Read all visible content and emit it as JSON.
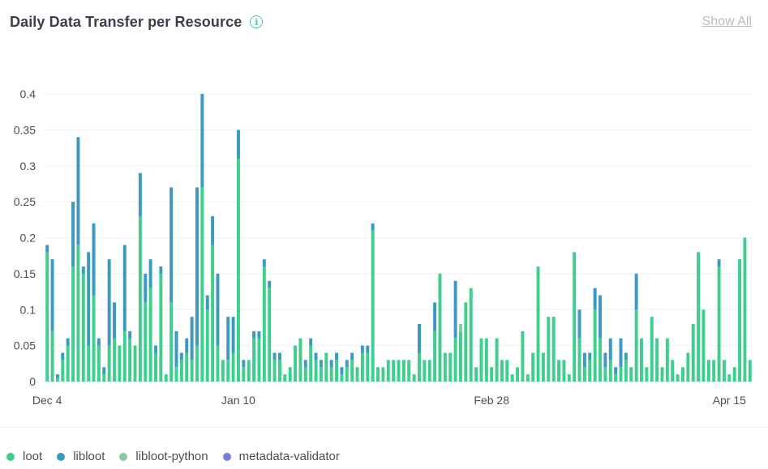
{
  "header": {
    "title": "Daily Data Transfer per Resource",
    "show_all_label": "Show All",
    "info_symbol": "i"
  },
  "colors": {
    "loot": "#3ecf8e",
    "libloot": "#3b99c2",
    "libloot-python": "#87c9a5",
    "metadata-validator": "#7a7fd1"
  },
  "legend": [
    {
      "name": "loot",
      "color": "#3ecf8e"
    },
    {
      "name": "libloot",
      "color": "#3b99c2"
    },
    {
      "name": "libloot-python",
      "color": "#87c9a5"
    },
    {
      "name": "metadata-validator",
      "color": "#7a7fd1"
    }
  ],
  "chart_data": {
    "type": "bar",
    "stacked": true,
    "grid": true,
    "ylim": [
      0,
      0.4
    ],
    "yticks": [
      "0",
      "0.05",
      "0.1",
      "0.15",
      "0.2",
      "0.25",
      "0.3",
      "0.35",
      "0.4"
    ],
    "xtick_labels": [
      {
        "label": "Dec 4",
        "index": 0
      },
      {
        "label": "Jan 10",
        "index": 37
      },
      {
        "label": "Feb 28",
        "index": 86
      },
      {
        "label": "Apr 15",
        "index": 132
      }
    ],
    "series": [
      {
        "name": "loot",
        "values": [
          0.18,
          0.07,
          0.005,
          0.03,
          0.05,
          0.16,
          0.19,
          0.15,
          0.05,
          0.12,
          0.05,
          0.01,
          0.05,
          0.06,
          0.05,
          0.07,
          0.06,
          0.05,
          0.23,
          0.11,
          0.13,
          0.04,
          0.15,
          0.01,
          0.11,
          0.02,
          0.03,
          0.04,
          0.03,
          0.05,
          0.27,
          0.1,
          0.19,
          0.05,
          0.03,
          0.03,
          0.04,
          0.31,
          0.02,
          0.03,
          0.06,
          0.06,
          0.16,
          0.13,
          0.03,
          0.03,
          0.01,
          0.02,
          0.05,
          0.06,
          0.02,
          0.05,
          0.03,
          0.02,
          0.04,
          0.02,
          0.03,
          0.01,
          0.02,
          0.03,
          0.02,
          0.04,
          0.04,
          0.21,
          0.02,
          0.02,
          0.03,
          0.03,
          0.03,
          0.03,
          0.03,
          0.01,
          0.04,
          0.03,
          0.03,
          0.07,
          0.15,
          0.04,
          0.04,
          0.06,
          0.07,
          0.11,
          0.13,
          0.02,
          0.06,
          0.06,
          0.02,
          0.06,
          0.03,
          0.03,
          0.01,
          0.02,
          0.07,
          0.01,
          0.04,
          0.16,
          0.04,
          0.09,
          0.09,
          0.03,
          0.03,
          0.01,
          0.18,
          0.06,
          0.02,
          0.03,
          0.1,
          0.06,
          0.02,
          0.03,
          0.01,
          0.02,
          0.03,
          0.02,
          0.1,
          0.06,
          0.02,
          0.09,
          0.06,
          0.02,
          0.06,
          0.03,
          0.01,
          0.02,
          0.04,
          0.08,
          0.18,
          0.1,
          0.03,
          0.03,
          0.16,
          0.03,
          0.01,
          0.02,
          0.17,
          0.2,
          0.03
        ]
      },
      {
        "name": "libloot",
        "values": [
          0.01,
          0.1,
          0.005,
          0.01,
          0.01,
          0.09,
          0.15,
          0.01,
          0.13,
          0.1,
          0.01,
          0.01,
          0.12,
          0.05,
          0,
          0.12,
          0.01,
          0,
          0.06,
          0.04,
          0.04,
          0.01,
          0.01,
          0,
          0.16,
          0.05,
          0.01,
          0.02,
          0.06,
          0.22,
          0.13,
          0.02,
          0.04,
          0.1,
          0,
          0.06,
          0.05,
          0.04,
          0.01,
          0,
          0.01,
          0.01,
          0.01,
          0.01,
          0.01,
          0.01,
          0,
          0,
          0,
          0,
          0.01,
          0.01,
          0.01,
          0.01,
          0,
          0.01,
          0.01,
          0.01,
          0.01,
          0.01,
          0,
          0.01,
          0.01,
          0.01,
          0,
          0,
          0,
          0,
          0,
          0,
          0,
          0,
          0.04,
          0,
          0,
          0.04,
          0,
          0,
          0,
          0.08,
          0,
          0,
          0,
          0,
          0,
          0,
          0,
          0,
          0,
          0,
          0,
          0,
          0,
          0,
          0,
          0,
          0,
          0,
          0,
          0,
          0,
          0,
          0,
          0.04,
          0.02,
          0.01,
          0.03,
          0.06,
          0.02,
          0.03,
          0.01,
          0.04,
          0.01,
          0,
          0.05,
          0,
          0,
          0,
          0,
          0,
          0,
          0,
          0,
          0,
          0,
          0,
          0,
          0,
          0,
          0,
          0.01,
          0,
          0,
          0,
          0,
          0
        ]
      },
      {
        "name": "libloot-python",
        "values": [
          0,
          0,
          0,
          0,
          0,
          0,
          0,
          0,
          0,
          0,
          0,
          0,
          0,
          0,
          0,
          0,
          0,
          0,
          0,
          0,
          0,
          0,
          0,
          0,
          0,
          0,
          0,
          0,
          0,
          0,
          0,
          0,
          0,
          0,
          0,
          0,
          0,
          0,
          0,
          0,
          0,
          0,
          0,
          0,
          0,
          0,
          0,
          0,
          0,
          0,
          0,
          0,
          0,
          0,
          0,
          0,
          0,
          0,
          0,
          0,
          0,
          0,
          0,
          0,
          0,
          0,
          0,
          0,
          0,
          0,
          0,
          0,
          0,
          0,
          0,
          0,
          0,
          0,
          0,
          0,
          0.01,
          0,
          0,
          0,
          0,
          0,
          0,
          0,
          0,
          0,
          0,
          0,
          0,
          0,
          0,
          0,
          0,
          0,
          0,
          0,
          0,
          0,
          0,
          0,
          0,
          0,
          0,
          0,
          0,
          0,
          0,
          0,
          0,
          0,
          0,
          0,
          0,
          0,
          0,
          0,
          0,
          0,
          0,
          0,
          0,
          0,
          0,
          0,
          0,
          0,
          0,
          0,
          0,
          0,
          0,
          0,
          0
        ]
      },
      {
        "name": "metadata-validator",
        "values": [
          0,
          0,
          0,
          0,
          0,
          0,
          0,
          0,
          0,
          0,
          0,
          0,
          0,
          0,
          0,
          0,
          0,
          0,
          0,
          0,
          0,
          0,
          0,
          0,
          0,
          0,
          0,
          0,
          0,
          0,
          0,
          0,
          0,
          0,
          0,
          0,
          0,
          0,
          0,
          0,
          0,
          0,
          0,
          0,
          0,
          0,
          0,
          0,
          0,
          0,
          0,
          0,
          0,
          0,
          0,
          0,
          0,
          0,
          0,
          0,
          0,
          0,
          0,
          0,
          0,
          0,
          0,
          0,
          0,
          0,
          0,
          0,
          0,
          0,
          0,
          0,
          0,
          0,
          0,
          0,
          0,
          0,
          0,
          0,
          0,
          0,
          0,
          0,
          0,
          0,
          0,
          0,
          0,
          0,
          0,
          0,
          0,
          0,
          0,
          0,
          0,
          0,
          0,
          0,
          0,
          0,
          0,
          0,
          0,
          0,
          0,
          0,
          0,
          0,
          0,
          0,
          0,
          0,
          0,
          0,
          0,
          0,
          0,
          0,
          0,
          0,
          0,
          0,
          0,
          0,
          0,
          0,
          0,
          0,
          0,
          0,
          0
        ]
      }
    ]
  }
}
